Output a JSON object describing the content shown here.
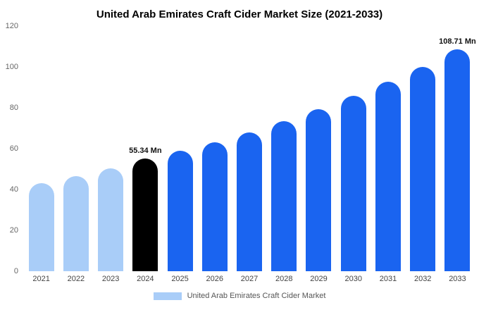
{
  "chart_data": {
    "type": "bar",
    "title": "United Arab Emirates Craft Cider Market Size (2021-2033)",
    "categories": [
      "2021",
      "2022",
      "2023",
      "2024",
      "2025",
      "2026",
      "2027",
      "2028",
      "2029",
      "2030",
      "2031",
      "2032",
      "2033"
    ],
    "values": [
      43.2,
      46.4,
      50.3,
      55.34,
      58.9,
      63.2,
      68.1,
      73.4,
      79.4,
      85.9,
      92.6,
      100.0,
      108.71
    ],
    "bar_colors": [
      "#A9CDF8",
      "#A9CDF8",
      "#A9CDF8",
      "#000000",
      "#1A64F0",
      "#1A64F0",
      "#1A64F0",
      "#1A64F0",
      "#1A64F0",
      "#1A64F0",
      "#1A64F0",
      "#1A64F0",
      "#1A64F0"
    ],
    "data_labels": [
      "",
      "",
      "",
      "55.34 Mn",
      "",
      "",
      "",
      "",
      "",
      "",
      "",
      "",
      "108.71 Mn"
    ],
    "xlabel": "",
    "ylabel": "",
    "ylim": [
      0,
      120
    ],
    "ytick_step": 20,
    "grid": false,
    "legend": {
      "label": "United Arab Emirates Craft Cider Market",
      "swatch_color": "#A9CDF8",
      "position": "bottom"
    }
  }
}
